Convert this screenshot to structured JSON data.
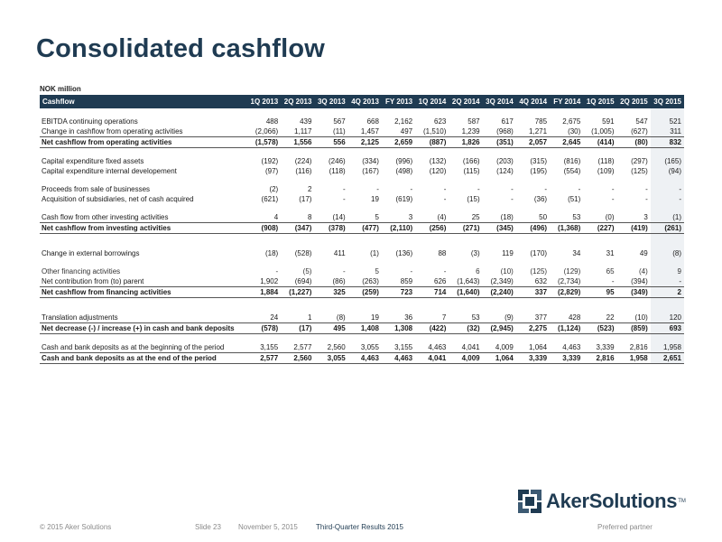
{
  "page": {
    "title": "Consolidated cashflow",
    "unit": "NOK million"
  },
  "table": {
    "header": [
      "Cashflow",
      "1Q 2013",
      "2Q 2013",
      "3Q 2013",
      "4Q 2013",
      "FY 2013",
      "1Q 2014",
      "2Q 2014",
      "3Q 2014",
      "4Q 2014",
      "FY 2014",
      "1Q 2015",
      "2Q 2015",
      "3Q 2015"
    ],
    "rows": [
      {
        "label": "EBITDA continuing operations",
        "values": [
          "488",
          "439",
          "567",
          "668",
          "2,162",
          "623",
          "587",
          "617",
          "785",
          "2,675",
          "591",
          "547",
          "521"
        ],
        "bold": false,
        "gap": "sm"
      },
      {
        "label": "Change in cashflow from operating activities",
        "values": [
          "(2,066)",
          "1,117",
          "(11)",
          "1,457",
          "497",
          "(1,510)",
          "1,239",
          "(968)",
          "1,271",
          "(30)",
          "(1,005)",
          "(627)",
          "311"
        ],
        "bold": false
      },
      {
        "label": "Net cashflow from operating activities",
        "values": [
          "(1,578)",
          "1,556",
          "556",
          "2,125",
          "2,659",
          "(887)",
          "1,826",
          "(351)",
          "2,057",
          "2,645",
          "(414)",
          "(80)",
          "832"
        ],
        "bold": true
      },
      {
        "label": "Capital expenditure fixed assets",
        "values": [
          "(192)",
          "(224)",
          "(246)",
          "(334)",
          "(996)",
          "(132)",
          "(166)",
          "(203)",
          "(315)",
          "(816)",
          "(118)",
          "(297)",
          "(165)"
        ],
        "bold": false,
        "gap": "sm"
      },
      {
        "label": "Capital expenditure internal developement",
        "values": [
          "(97)",
          "(116)",
          "(118)",
          "(167)",
          "(498)",
          "(120)",
          "(115)",
          "(124)",
          "(195)",
          "(554)",
          "(109)",
          "(125)",
          "(94)"
        ],
        "bold": false
      },
      {
        "label": "Proceeds from sale of businesses",
        "values": [
          "(2)",
          "2",
          "-",
          "-",
          "-",
          "-",
          "-",
          "-",
          "-",
          "-",
          "-",
          "-",
          "-"
        ],
        "bold": false,
        "gap": "sm"
      },
      {
        "label": "Acquisition of subsidiaries, net of cash acquired",
        "values": [
          "(621)",
          "(17)",
          "-",
          "19",
          "(619)",
          "-",
          "(15)",
          "-",
          "(36)",
          "(51)",
          "-",
          "-",
          "-"
        ],
        "bold": false
      },
      {
        "label": "Cash flow from other investing activities",
        "values": [
          "4",
          "8",
          "(14)",
          "5",
          "3",
          "(4)",
          "25",
          "(18)",
          "50",
          "53",
          "(0)",
          "3",
          "(1)"
        ],
        "bold": false,
        "gap": "sm"
      },
      {
        "label": "Net cashflow from investing activities",
        "values": [
          "(908)",
          "(347)",
          "(378)",
          "(477)",
          "(2,110)",
          "(256)",
          "(271)",
          "(345)",
          "(496)",
          "(1,368)",
          "(227)",
          "(419)",
          "(261)"
        ],
        "bold": true
      },
      {
        "label": "Change in external borrowings",
        "values": [
          "(18)",
          "(528)",
          "411",
          "(1)",
          "(136)",
          "88",
          "(3)",
          "119",
          "(170)",
          "34",
          "31",
          "49",
          "(8)"
        ],
        "bold": false,
        "gap": "lg"
      },
      {
        "label": "Other financing activities",
        "values": [
          "-",
          "(5)",
          "-",
          "5",
          "-",
          "-",
          "6",
          "(10)",
          "(125)",
          "(129)",
          "65",
          "(4)",
          "9"
        ],
        "bold": false,
        "gap": "sm",
        "light": true
      },
      {
        "label": "Net contribution from (to) parent",
        "values": [
          "1,902",
          "(694)",
          "(86)",
          "(263)",
          "859",
          "626",
          "(1,643)",
          "(2,349)",
          "632",
          "(2,734)",
          "-",
          "(394)",
          "-"
        ],
        "bold": false
      },
      {
        "label": "Net cashflow from financing activities",
        "values": [
          "1,884",
          "(1,227)",
          "325",
          "(259)",
          "723",
          "714",
          "(1,640)",
          "(2,240)",
          "337",
          "(2,829)",
          "95",
          "(349)",
          "2"
        ],
        "bold": true
      },
      {
        "label": "Translation adjustments",
        "values": [
          "24",
          "1",
          "(8)",
          "19",
          "36",
          "7",
          "53",
          "(9)",
          "377",
          "428",
          "22",
          "(10)",
          "120"
        ],
        "bold": false,
        "gap": "lg"
      },
      {
        "label": "Net decrease (-) / increase (+) in cash and bank deposits",
        "values": [
          "(578)",
          "(17)",
          "495",
          "1,408",
          "1,308",
          "(422)",
          "(32)",
          "(2,945)",
          "2,275",
          "(1,124)",
          "(523)",
          "(859)",
          "693"
        ],
        "bold": true
      },
      {
        "label": "Cash and bank deposits as at the beginning of the period",
        "values": [
          "3,155",
          "2,577",
          "2,560",
          "3,055",
          "3,155",
          "4,463",
          "4,041",
          "4,009",
          "1,064",
          "4,463",
          "3,339",
          "2,816",
          "1,958"
        ],
        "bold": false,
        "gap": "sm"
      },
      {
        "label": "Cash and bank deposits as at the end of the period",
        "values": [
          "2,577",
          "2,560",
          "3,055",
          "4,463",
          "4,463",
          "4,041",
          "4,009",
          "1,064",
          "3,339",
          "3,339",
          "2,816",
          "1,958",
          "2,651"
        ],
        "bold": true
      }
    ]
  },
  "logo": {
    "text": "AkerSolutions",
    "tm": "TM",
    "mark_color": "#1f3b52"
  },
  "footer": {
    "copyright": "© 2015 Aker Solutions",
    "slide": "Slide 23",
    "date": "November 5, 2015",
    "presentation": "Third-Quarter Results 2015",
    "tagline": "Preferred partner"
  }
}
